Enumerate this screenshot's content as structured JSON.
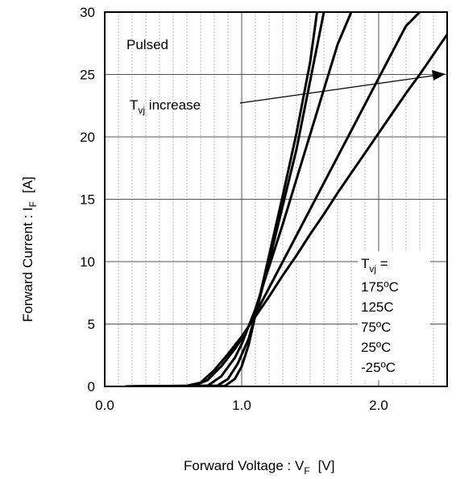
{
  "chart_data": {
    "type": "line",
    "title": "",
    "xlabel": {
      "main": "Forward Voltage : V",
      "sub": "F",
      "unit": "[V]"
    },
    "ylabel": {
      "main": "Forward Current : I",
      "sub": "F",
      "unit": "[A]"
    },
    "xlim": [
      0,
      2.5
    ],
    "ylim": [
      0,
      30
    ],
    "x_ticks": [
      {
        "value": 0.0,
        "label": "0.0"
      },
      {
        "value": 1.0,
        "label": "1.0"
      },
      {
        "value": 2.0,
        "label": "2.0"
      }
    ],
    "y_ticks": [
      {
        "value": 0,
        "label": "0"
      },
      {
        "value": 5,
        "label": "5"
      },
      {
        "value": 10,
        "label": "10"
      },
      {
        "value": 15,
        "label": "15"
      },
      {
        "value": 20,
        "label": "20"
      },
      {
        "value": 25,
        "label": "25"
      },
      {
        "value": 30,
        "label": "30"
      }
    ],
    "grid": "major and minor vertical, major horizontal",
    "line_color": "#000000",
    "grid_color": "#888888",
    "annotations": {
      "pulsed": "Pulsed",
      "increase_main": "T",
      "increase_sub": "vj",
      "increase_rest": " increase"
    },
    "legend": {
      "head_main": "T",
      "head_sub": "vj",
      "head_rest": " =",
      "entries": [
        "175ºC",
        "125C",
        "75ºC",
        "25ºC",
        "-25ºC"
      ]
    },
    "series": [
      {
        "x": [
          0.15,
          0.6,
          0.7,
          0.8,
          0.9,
          1.0,
          1.1,
          1.2,
          1.3,
          1.4,
          1.5,
          1.6,
          1.7,
          1.8,
          1.9,
          2.0,
          2.1,
          2.2,
          2.3,
          2.4,
          2.5
        ],
        "y": [
          0,
          0.05,
          0.3,
          1.3,
          2.6,
          4.0,
          5.6,
          7.2,
          8.9,
          10.5,
          12.2,
          13.8,
          15.5,
          17.1,
          18.7,
          20.3,
          21.9,
          23.5,
          25.0,
          26.6,
          28.2
        ]
      },
      {
        "x": [
          0.15,
          0.65,
          0.75,
          0.85,
          0.95,
          1.0,
          1.1,
          1.2,
          1.3,
          1.4,
          1.5,
          1.6,
          1.7,
          1.8,
          1.9,
          2.0,
          2.1,
          2.2,
          2.3
        ],
        "y": [
          0,
          0.05,
          0.5,
          1.6,
          3.0,
          3.8,
          5.8,
          7.9,
          10.0,
          12.1,
          14.2,
          16.3,
          18.4,
          20.5,
          22.6,
          24.7,
          26.8,
          28.9,
          30.0
        ]
      },
      {
        "x": [
          0.15,
          0.75,
          0.85,
          0.95,
          1.0,
          1.1,
          1.2,
          1.3,
          1.4,
          1.5,
          1.6,
          1.7,
          1.8
        ],
        "y": [
          0,
          0.05,
          0.8,
          2.3,
          3.4,
          6.2,
          9.6,
          13.0,
          16.6,
          20.2,
          23.8,
          27.4,
          30.0
        ]
      },
      {
        "x": [
          0.15,
          0.82,
          0.9,
          0.97,
          1.05,
          1.1,
          1.2,
          1.3,
          1.4,
          1.5,
          1.6
        ],
        "y": [
          0,
          0.05,
          0.6,
          1.8,
          3.8,
          5.7,
          10.0,
          14.5,
          19.0,
          24.5,
          30.0
        ]
      },
      {
        "x": [
          0.15,
          0.88,
          0.95,
          1.0,
          1.05,
          1.1,
          1.2,
          1.3,
          1.4,
          1.5,
          1.55
        ],
        "y": [
          0,
          0.05,
          0.6,
          1.6,
          3.3,
          5.7,
          10.5,
          15.3,
          20.3,
          26.0,
          30.0
        ]
      }
    ]
  }
}
